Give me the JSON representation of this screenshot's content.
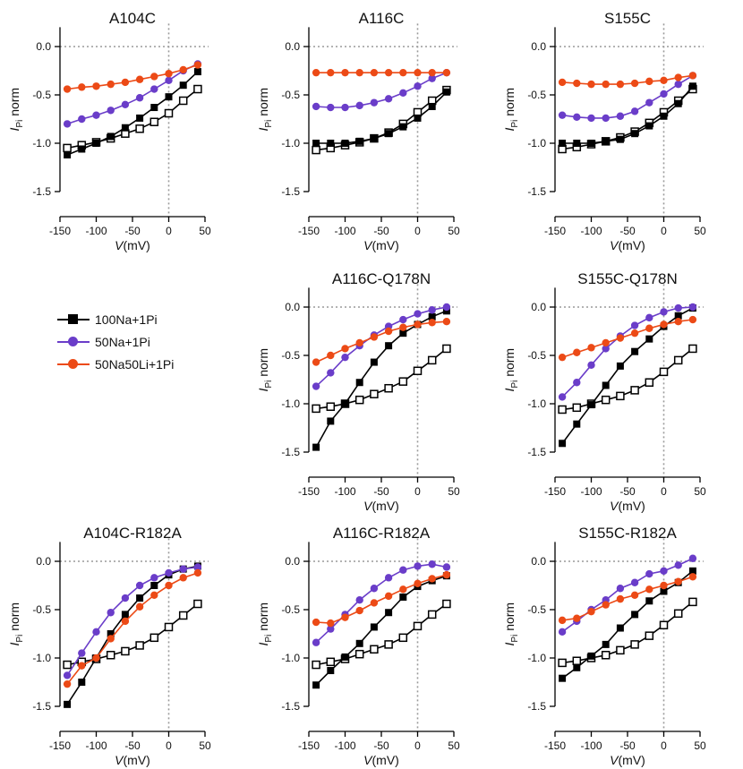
{
  "legend": {
    "items": [
      {
        "label": "100Na+1Pi",
        "color": "#000000",
        "marker": "square-filled"
      },
      {
        "label": "50Na+1Pi",
        "color": "#6a3dc9",
        "marker": "circle-filled"
      },
      {
        "label": "50Na50Li+1Pi",
        "color": "#ec4a16",
        "marker": "circle-filled"
      }
    ]
  },
  "chart_data": [
    {
      "type": "line",
      "title": "A104C",
      "xlabel": "V(mV)",
      "ylabel": "I_Pi norm",
      "xlim": [
        -150,
        50
      ],
      "ylim": [
        -1.5,
        0.2
      ],
      "xticks": [
        -150,
        -100,
        -50,
        0,
        50
      ],
      "yticks": [
        0.0,
        -0.5,
        -1.0,
        -1.5
      ],
      "x": [
        -140,
        -120,
        -100,
        -80,
        -60,
        -40,
        -20,
        0,
        20,
        40
      ],
      "series": [
        {
          "name": "100Na+1Pi",
          "color": "#000000",
          "marker": "square-filled",
          "values": [
            -1.12,
            -1.06,
            -1.0,
            -0.93,
            -0.84,
            -0.74,
            -0.63,
            -0.52,
            -0.4,
            -0.26
          ]
        },
        {
          "name": "50Na+1Pi",
          "color": "#6a3dc9",
          "marker": "circle-filled",
          "values": [
            -0.8,
            -0.75,
            -0.71,
            -0.66,
            -0.6,
            -0.53,
            -0.44,
            -0.35,
            -0.25,
            -0.18
          ]
        },
        {
          "name": "50Na50Li+1Pi",
          "color": "#ec4a16",
          "marker": "circle-filled",
          "values": [
            -0.44,
            -0.42,
            -0.41,
            -0.39,
            -0.37,
            -0.34,
            -0.31,
            -0.28,
            -0.24,
            -0.19
          ]
        },
        {
          "name": "",
          "color": "#000000",
          "marker": "square-open",
          "values": [
            -1.05,
            -1.02,
            -0.99,
            -0.95,
            -0.9,
            -0.85,
            -0.78,
            -0.69,
            -0.56,
            -0.44
          ]
        }
      ]
    },
    {
      "type": "line",
      "title": "A116C",
      "xlabel": "V(mV)",
      "ylabel": "I_Pi norm",
      "xlim": [
        -150,
        50
      ],
      "ylim": [
        -1.5,
        0.2
      ],
      "xticks": [
        -150,
        -100,
        -50,
        0,
        50
      ],
      "yticks": [
        0.0,
        -0.5,
        -1.0,
        -1.5
      ],
      "x": [
        -140,
        -120,
        -100,
        -80,
        -60,
        -40,
        -20,
        0,
        20,
        40
      ],
      "series": [
        {
          "name": "100Na+1Pi",
          "color": "#000000",
          "marker": "square-filled",
          "values": [
            -1.0,
            -1.0,
            -1.0,
            -0.98,
            -0.95,
            -0.9,
            -0.83,
            -0.74,
            -0.62,
            -0.47
          ]
        },
        {
          "name": "50Na+1Pi",
          "color": "#6a3dc9",
          "marker": "circle-filled",
          "values": [
            -0.62,
            -0.63,
            -0.63,
            -0.61,
            -0.58,
            -0.54,
            -0.48,
            -0.41,
            -0.33,
            -0.27
          ]
        },
        {
          "name": "50Na50Li+1Pi",
          "color": "#ec4a16",
          "marker": "circle-filled",
          "values": [
            -0.27,
            -0.27,
            -0.27,
            -0.27,
            -0.27,
            -0.27,
            -0.27,
            -0.27,
            -0.27,
            -0.27
          ]
        },
        {
          "name": "",
          "color": "#000000",
          "marker": "square-open",
          "values": [
            -1.07,
            -1.05,
            -1.02,
            -0.99,
            -0.95,
            -0.89,
            -0.8,
            -0.68,
            -0.56,
            -0.45
          ]
        }
      ]
    },
    {
      "type": "line",
      "title": "S155C",
      "xlabel": "V(mV)",
      "ylabel": "I_Pi norm",
      "xlim": [
        -150,
        50
      ],
      "ylim": [
        -1.5,
        0.2
      ],
      "xticks": [
        -150,
        -100,
        -50,
        0,
        50
      ],
      "yticks": [
        0.0,
        -0.5,
        -1.0,
        -1.5
      ],
      "x": [
        -140,
        -120,
        -100,
        -80,
        -60,
        -40,
        -20,
        0,
        20,
        40
      ],
      "series": [
        {
          "name": "100Na+1Pi",
          "color": "#000000",
          "marker": "square-filled",
          "values": [
            -1.0,
            -1.0,
            -1.0,
            -0.98,
            -0.96,
            -0.9,
            -0.82,
            -0.72,
            -0.59,
            -0.41
          ]
        },
        {
          "name": "50Na+1Pi",
          "color": "#6a3dc9",
          "marker": "circle-filled",
          "values": [
            -0.71,
            -0.73,
            -0.74,
            -0.74,
            -0.72,
            -0.67,
            -0.58,
            -0.49,
            -0.39,
            -0.3
          ]
        },
        {
          "name": "50Na50Li+1Pi",
          "color": "#ec4a16",
          "marker": "circle-filled",
          "values": [
            -0.37,
            -0.38,
            -0.39,
            -0.39,
            -0.39,
            -0.38,
            -0.36,
            -0.35,
            -0.32,
            -0.3
          ]
        },
        {
          "name": "",
          "color": "#000000",
          "marker": "square-open",
          "values": [
            -1.06,
            -1.04,
            -1.01,
            -0.98,
            -0.94,
            -0.88,
            -0.79,
            -0.68,
            -0.56,
            -0.44
          ]
        }
      ]
    },
    {
      "type": "line",
      "title": "A116C-Q178N",
      "xlabel": "V(mV)",
      "ylabel": "I_Pi norm",
      "xlim": [
        -150,
        50
      ],
      "ylim": [
        -1.5,
        0.2
      ],
      "xticks": [
        -150,
        -100,
        -50,
        0,
        50
      ],
      "yticks": [
        0.0,
        -0.5,
        -1.0,
        -1.5
      ],
      "x": [
        -140,
        -120,
        -100,
        -80,
        -60,
        -40,
        -20,
        0,
        20,
        40
      ],
      "series": [
        {
          "name": "100Na+1Pi",
          "color": "#000000",
          "marker": "square-filled",
          "values": [
            -1.45,
            -1.18,
            -1.0,
            -0.78,
            -0.57,
            -0.4,
            -0.27,
            -0.18,
            -0.1,
            -0.04
          ]
        },
        {
          "name": "50Na+1Pi",
          "color": "#6a3dc9",
          "marker": "circle-filled",
          "values": [
            -0.82,
            -0.68,
            -0.52,
            -0.4,
            -0.29,
            -0.2,
            -0.13,
            -0.07,
            -0.03,
            0.0
          ]
        },
        {
          "name": "50Na50Li+1Pi",
          "color": "#ec4a16",
          "marker": "circle-filled",
          "values": [
            -0.57,
            -0.5,
            -0.43,
            -0.37,
            -0.31,
            -0.25,
            -0.21,
            -0.18,
            -0.16,
            -0.15
          ]
        },
        {
          "name": "",
          "color": "#000000",
          "marker": "square-open",
          "values": [
            -1.05,
            -1.03,
            -1.0,
            -0.96,
            -0.9,
            -0.84,
            -0.77,
            -0.66,
            -0.55,
            -0.43
          ]
        }
      ]
    },
    {
      "type": "line",
      "title": "S155C-Q178N",
      "xlabel": "V(mV)",
      "ylabel": "I_Pi norm",
      "xlim": [
        -150,
        50
      ],
      "ylim": [
        -1.5,
        0.2
      ],
      "xticks": [
        -150,
        -100,
        -50,
        0,
        50
      ],
      "yticks": [
        0.0,
        -0.5,
        -1.0,
        -1.5
      ],
      "x": [
        -140,
        -120,
        -100,
        -80,
        -60,
        -40,
        -20,
        0,
        20,
        40
      ],
      "series": [
        {
          "name": "100Na+1Pi",
          "color": "#000000",
          "marker": "square-filled",
          "values": [
            -1.41,
            -1.21,
            -1.01,
            -0.81,
            -0.61,
            -0.46,
            -0.33,
            -0.2,
            -0.09,
            -0.01
          ]
        },
        {
          "name": "50Na+1Pi",
          "color": "#6a3dc9",
          "marker": "circle-filled",
          "values": [
            -0.93,
            -0.78,
            -0.6,
            -0.43,
            -0.3,
            -0.19,
            -0.11,
            -0.05,
            -0.01,
            0.0
          ]
        },
        {
          "name": "50Na50Li+1Pi",
          "color": "#ec4a16",
          "marker": "circle-filled",
          "values": [
            -0.52,
            -0.47,
            -0.42,
            -0.37,
            -0.32,
            -0.27,
            -0.22,
            -0.18,
            -0.15,
            -0.13
          ]
        },
        {
          "name": "",
          "color": "#000000",
          "marker": "square-open",
          "values": [
            -1.06,
            -1.04,
            -1.0,
            -0.96,
            -0.92,
            -0.86,
            -0.78,
            -0.67,
            -0.55,
            -0.43
          ]
        }
      ]
    },
    {
      "type": "line",
      "title": "A104C-R182A",
      "xlabel": "V(mV)",
      "ylabel": "I_Pi norm",
      "xlim": [
        -150,
        50
      ],
      "ylim": [
        -1.5,
        0.2
      ],
      "xticks": [
        -150,
        -100,
        -50,
        0,
        50
      ],
      "yticks": [
        0.0,
        -0.5,
        -1.0,
        -1.5
      ],
      "x": [
        -140,
        -120,
        -100,
        -80,
        -60,
        -40,
        -20,
        0,
        20,
        40
      ],
      "series": [
        {
          "name": "100Na+1Pi",
          "color": "#000000",
          "marker": "square-filled",
          "values": [
            -1.48,
            -1.25,
            -1.0,
            -0.75,
            -0.55,
            -0.38,
            -0.25,
            -0.14,
            -0.08,
            -0.05
          ]
        },
        {
          "name": "50Na+1Pi",
          "color": "#6a3dc9",
          "marker": "circle-filled",
          "values": [
            -1.18,
            -0.95,
            -0.73,
            -0.53,
            -0.38,
            -0.25,
            -0.17,
            -0.12,
            -0.08,
            -0.06
          ]
        },
        {
          "name": "50Na50Li+1Pi",
          "color": "#ec4a16",
          "marker": "circle-filled",
          "values": [
            -1.27,
            -1.08,
            -1.0,
            -0.8,
            -0.62,
            -0.47,
            -0.35,
            -0.25,
            -0.17,
            -0.12
          ]
        },
        {
          "name": "",
          "color": "#000000",
          "marker": "square-open",
          "values": [
            -1.07,
            -1.04,
            -1.01,
            -0.97,
            -0.93,
            -0.87,
            -0.79,
            -0.68,
            -0.56,
            -0.44
          ]
        }
      ]
    },
    {
      "type": "line",
      "title": "A116C-R182A",
      "xlabel": "V(mV)",
      "ylabel": "I_Pi norm",
      "xlim": [
        -150,
        50
      ],
      "ylim": [
        -1.5,
        0.2
      ],
      "xticks": [
        -150,
        -100,
        -50,
        0,
        50
      ],
      "yticks": [
        0.0,
        -0.5,
        -1.0,
        -1.5
      ],
      "x": [
        -140,
        -120,
        -100,
        -80,
        -60,
        -40,
        -20,
        0,
        20,
        40
      ],
      "series": [
        {
          "name": "100Na+1Pi",
          "color": "#000000",
          "marker": "square-filled",
          "values": [
            -1.28,
            -1.13,
            -0.99,
            -0.85,
            -0.68,
            -0.53,
            -0.37,
            -0.26,
            -0.2,
            -0.15
          ]
        },
        {
          "name": "50Na+1Pi",
          "color": "#6a3dc9",
          "marker": "circle-filled",
          "values": [
            -0.84,
            -0.7,
            -0.55,
            -0.4,
            -0.28,
            -0.17,
            -0.09,
            -0.05,
            -0.03,
            -0.06
          ]
        },
        {
          "name": "50Na50Li+1Pi",
          "color": "#ec4a16",
          "marker": "circle-filled",
          "values": [
            -0.63,
            -0.64,
            -0.58,
            -0.51,
            -0.43,
            -0.36,
            -0.29,
            -0.23,
            -0.18,
            -0.14
          ]
        },
        {
          "name": "",
          "color": "#000000",
          "marker": "square-open",
          "values": [
            -1.07,
            -1.04,
            -1.01,
            -0.96,
            -0.91,
            -0.86,
            -0.79,
            -0.67,
            -0.55,
            -0.44
          ]
        }
      ]
    },
    {
      "type": "line",
      "title": "S155C-R182A",
      "xlabel": "V(mV)",
      "ylabel": "I_Pi norm",
      "xlim": [
        -150,
        50
      ],
      "ylim": [
        -1.5,
        0.2
      ],
      "xticks": [
        -150,
        -100,
        -50,
        0,
        50
      ],
      "yticks": [
        0.0,
        -0.5,
        -1.0,
        -1.5
      ],
      "x": [
        -140,
        -120,
        -100,
        -80,
        -60,
        -40,
        -20,
        0,
        20,
        40
      ],
      "series": [
        {
          "name": "100Na+1Pi",
          "color": "#000000",
          "marker": "square-filled",
          "values": [
            -1.21,
            -1.1,
            -0.98,
            -0.86,
            -0.69,
            -0.55,
            -0.41,
            -0.31,
            -0.22,
            -0.1
          ]
        },
        {
          "name": "50Na+1Pi",
          "color": "#6a3dc9",
          "marker": "circle-filled",
          "values": [
            -0.73,
            -0.62,
            -0.5,
            -0.4,
            -0.28,
            -0.22,
            -0.13,
            -0.1,
            -0.04,
            0.03
          ]
        },
        {
          "name": "50Na50Li+1Pi",
          "color": "#ec4a16",
          "marker": "circle-filled",
          "values": [
            -0.61,
            -0.59,
            -0.52,
            -0.45,
            -0.39,
            -0.35,
            -0.29,
            -0.25,
            -0.21,
            -0.16
          ]
        },
        {
          "name": "",
          "color": "#000000",
          "marker": "square-open",
          "values": [
            -1.05,
            -1.03,
            -1.0,
            -0.97,
            -0.92,
            -0.86,
            -0.77,
            -0.66,
            -0.54,
            -0.42
          ]
        }
      ]
    }
  ]
}
